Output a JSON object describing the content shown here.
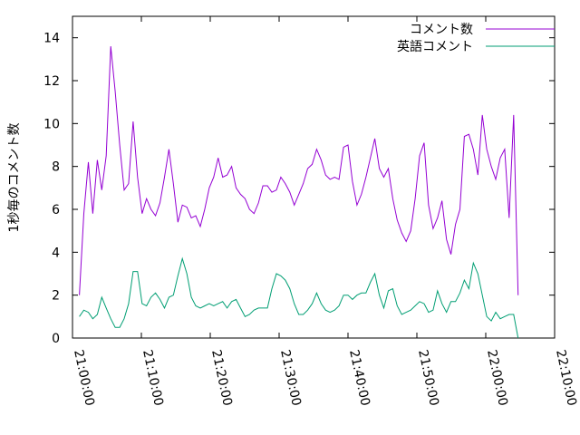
{
  "chart_data": {
    "type": "line",
    "y_label": "1秒毎のコメント数",
    "x": [
      "21:01:00",
      "21:01:39",
      "21:02:18",
      "21:02:57",
      "21:03:36",
      "21:04:15",
      "21:04:54",
      "21:05:33",
      "21:06:12",
      "21:06:51",
      "21:07:30",
      "21:08:09",
      "21:08:48",
      "21:09:27",
      "21:10:06",
      "21:10:45",
      "21:11:24",
      "21:12:03",
      "21:12:42",
      "21:13:21",
      "21:14:00",
      "21:14:39",
      "21:15:18",
      "21:15:57",
      "21:16:36",
      "21:17:15",
      "21:17:54",
      "21:18:33",
      "21:19:12",
      "21:19:51",
      "21:20:30",
      "21:21:09",
      "21:21:48",
      "21:22:27",
      "21:23:06",
      "21:23:45",
      "21:24:24",
      "21:25:03",
      "21:25:42",
      "21:26:21",
      "21:27:00",
      "21:27:39",
      "21:28:18",
      "21:28:57",
      "21:29:36",
      "21:30:15",
      "21:30:54",
      "21:31:33",
      "21:32:12",
      "21:32:51",
      "21:33:30",
      "21:34:09",
      "21:34:48",
      "21:35:27",
      "21:36:06",
      "21:36:45",
      "21:37:24",
      "21:38:03",
      "21:38:42",
      "21:39:21",
      "21:40:00",
      "21:40:39",
      "21:41:18",
      "21:41:57",
      "21:42:36",
      "21:43:15",
      "21:43:54",
      "21:44:33",
      "21:45:12",
      "21:45:51",
      "21:46:30",
      "21:47:09",
      "21:47:48",
      "21:48:27",
      "21:49:06",
      "21:49:45",
      "21:50:24",
      "21:51:03",
      "21:51:42",
      "21:52:21",
      "21:53:00",
      "21:53:39",
      "21:54:18",
      "21:54:57",
      "21:55:36",
      "21:56:15",
      "21:56:54",
      "21:57:33",
      "21:58:12",
      "21:58:51",
      "21:59:30",
      "22:00:09",
      "22:00:48",
      "22:01:27",
      "22:02:06",
      "22:02:45",
      "22:03:24",
      "22:04:03",
      "22:04:42"
    ],
    "series": [
      {
        "name": "コメント数",
        "color": "#9400d3",
        "values": [
          2,
          5.8,
          8.2,
          5.8,
          8.3,
          6.9,
          8.5,
          13.6,
          11.5,
          9,
          6.9,
          7.2,
          10.1,
          7.5,
          5.8,
          6.5,
          6,
          5.7,
          6.3,
          7.5,
          8.8,
          7.2,
          5.4,
          6.2,
          6.1,
          5.6,
          5.7,
          5.2,
          6,
          7,
          7.5,
          8.4,
          7.5,
          7.6,
          8,
          7,
          6.7,
          6.5,
          6,
          5.8,
          6.3,
          7.1,
          7.1,
          6.8,
          6.9,
          7.5,
          7.2,
          6.8,
          6.2,
          6.7,
          7.2,
          7.9,
          8.1,
          8.8,
          8.3,
          7.6,
          7.4,
          7.5,
          7.4,
          8.9,
          9,
          7.3,
          6.2,
          6.7,
          7.5,
          8.4,
          9.3,
          7.9,
          7.5,
          7.9,
          6.5,
          5.5,
          4.9,
          4.5,
          5,
          6.5,
          8.5,
          9.1,
          6.2,
          5.1,
          5.6,
          6.4,
          4.6,
          3.9,
          5.3,
          6,
          9.4,
          9.5,
          8.8,
          7.6,
          10.4,
          8.8,
          8,
          7.4,
          8.4,
          8.8,
          5.6,
          10.4,
          2
        ]
      },
      {
        "name": "英語コメント",
        "color": "#009e73",
        "values": [
          1,
          1.3,
          1.2,
          0.9,
          1.1,
          1.9,
          1.4,
          0.9,
          0.5,
          0.5,
          0.9,
          1.6,
          3.1,
          3.1,
          1.6,
          1.5,
          1.9,
          2.1,
          1.8,
          1.4,
          1.9,
          2,
          2.9,
          3.7,
          3,
          1.9,
          1.5,
          1.4,
          1.5,
          1.6,
          1.5,
          1.6,
          1.7,
          1.4,
          1.7,
          1.8,
          1.4,
          1,
          1.1,
          1.3,
          1.4,
          1.4,
          1.4,
          2.3,
          3,
          2.9,
          2.7,
          2.3,
          1.6,
          1.1,
          1.1,
          1.3,
          1.6,
          2.1,
          1.6,
          1.3,
          1.2,
          1.3,
          1.5,
          2,
          2,
          1.8,
          2,
          2.1,
          2.1,
          2.6,
          3,
          2,
          1.4,
          2.2,
          2.3,
          1.5,
          1.1,
          1.2,
          1.3,
          1.5,
          1.7,
          1.6,
          1.2,
          1.3,
          2.2,
          1.6,
          1.2,
          1.7,
          1.7,
          2.1,
          2.7,
          2.3,
          3.5,
          3,
          2,
          1,
          0.8,
          1.2,
          0.9,
          1,
          1.1,
          1.1,
          0
        ]
      }
    ],
    "xlim": [
      "21:00:00",
      "22:10:00"
    ],
    "xticks": [
      "21:00:00",
      "21:10:00",
      "21:20:00",
      "21:30:00",
      "21:40:00",
      "21:50:00",
      "22:00:00",
      "22:10:00"
    ],
    "ylim": [
      0,
      15
    ],
    "yticks": [
      0,
      2,
      4,
      6,
      8,
      10,
      12,
      14
    ],
    "legend": "top-right"
  }
}
